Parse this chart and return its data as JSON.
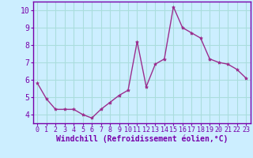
{
  "x": [
    0,
    1,
    2,
    3,
    4,
    5,
    6,
    7,
    8,
    9,
    10,
    11,
    12,
    13,
    14,
    15,
    16,
    17,
    18,
    19,
    20,
    21,
    22,
    23
  ],
  "y": [
    5.8,
    4.9,
    4.3,
    4.3,
    4.3,
    4.0,
    3.8,
    4.3,
    4.7,
    5.1,
    5.4,
    8.2,
    5.6,
    6.9,
    7.2,
    10.2,
    9.0,
    8.7,
    8.4,
    7.2,
    7.0,
    6.9,
    6.6,
    6.1
  ],
  "line_color": "#9b2d8e",
  "marker": "*",
  "marker_size": 3,
  "bg_color": "#cceeff",
  "grid_color": "#aadddd",
  "axis_color": "#7700aa",
  "spine_color": "#7700aa",
  "xlabel": "Windchill (Refroidissement éolien,°C)",
  "ylim": [
    3.5,
    10.5
  ],
  "xlim": [
    -0.5,
    23.5
  ],
  "yticks": [
    4,
    5,
    6,
    7,
    8,
    9,
    10
  ],
  "xticks": [
    0,
    1,
    2,
    3,
    4,
    5,
    6,
    7,
    8,
    9,
    10,
    11,
    12,
    13,
    14,
    15,
    16,
    17,
    18,
    19,
    20,
    21,
    22,
    23
  ],
  "xlabel_fontsize": 7,
  "tick_fontsize": 6,
  "ytick_fontsize": 7,
  "line_width": 1.0
}
